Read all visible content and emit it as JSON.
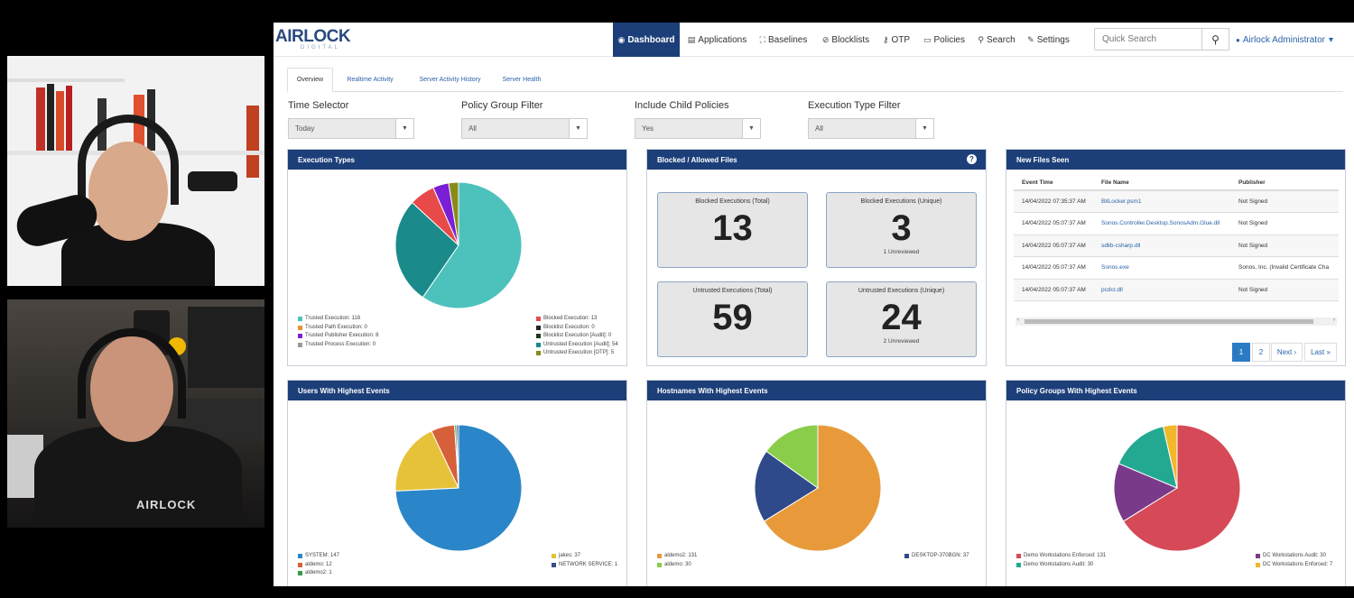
{
  "brand": {
    "name": "AIRLOCK",
    "sub": "DIGITAL"
  },
  "nav": [
    {
      "label": "Dashboard",
      "icon": "dashboard-icon",
      "glyph": "◉",
      "active": true
    },
    {
      "label": "Applications",
      "icon": "document-icon",
      "glyph": "▤",
      "active": false
    },
    {
      "label": "Baselines",
      "icon": "baseline-icon",
      "glyph": "⛶",
      "active": false
    },
    {
      "label": "Blocklists",
      "icon": "ban-icon",
      "glyph": "⊘",
      "active": false
    },
    {
      "label": "OTP",
      "icon": "key-icon",
      "glyph": "⚷",
      "active": false
    },
    {
      "label": "Policies",
      "icon": "monitor-icon",
      "glyph": "▭",
      "active": false
    },
    {
      "label": "Search",
      "icon": "search-icon",
      "glyph": "⚲",
      "active": false
    },
    {
      "label": "Settings",
      "icon": "wrench-icon",
      "glyph": "✎",
      "active": false
    }
  ],
  "quick_search": {
    "placeholder": "Quick Search",
    "glyph": "⚲"
  },
  "user": {
    "label": "Airlock Administrator",
    "glyph": "●",
    "caret": "▾"
  },
  "tabs": [
    {
      "label": "Overview",
      "active": true
    },
    {
      "label": "Realtime Activity",
      "active": false
    },
    {
      "label": "Server Activity History",
      "active": false
    },
    {
      "label": "Server Health",
      "active": false
    }
  ],
  "filters": [
    {
      "label": "Time Selector",
      "value": "Today"
    },
    {
      "label": "Policy Group Filter",
      "value": "All"
    },
    {
      "label": "Include Child Policies",
      "value": "Yes"
    },
    {
      "label": "Execution Type Filter",
      "value": "All"
    }
  ],
  "panels": {
    "execution_types": "Execution Types",
    "blocked_allowed": "Blocked / Allowed Files",
    "new_files": "New Files Seen",
    "users": "Users With Highest Events",
    "hostnames": "Hostnames With Highest Events",
    "policy_groups": "Policy Groups With Highest Events"
  },
  "stats": [
    {
      "title": "Blocked Executions (Total)",
      "value": "13",
      "sub": ""
    },
    {
      "title": "Blocked Executions (Unique)",
      "value": "3",
      "sub": "1 Unreviewed"
    },
    {
      "title": "Untrusted Executions (Total)",
      "value": "59",
      "sub": ""
    },
    {
      "title": "Untrusted Executions (Unique)",
      "value": "24",
      "sub": "2 Unreviewed"
    }
  ],
  "new_files": {
    "columns": [
      "Event Time",
      "File Name",
      "Publisher"
    ],
    "rows": [
      {
        "time": "14/04/2022 07:35:37 AM",
        "file": "BitLocker.psm1",
        "publisher": "Not Signed"
      },
      {
        "time": "14/04/2022 05:07:37 AM",
        "file": "Sonos.Controller.Desktop.SonosAdm.Glue.dll",
        "publisher": "Not Signed"
      },
      {
        "time": "14/04/2022 05:07:37 AM",
        "file": "sdlib-csharp.dll",
        "publisher": "Not Signed"
      },
      {
        "time": "14/04/2022 05:07:37 AM",
        "file": "Sonos.exe",
        "publisher": "Sonos, Inc. (Invalid Certificate Cha"
      },
      {
        "time": "14/04/2022 05:07:37 AM",
        "file": "pcdcr.dll",
        "publisher": "Not Signed"
      }
    ],
    "pager": [
      "1",
      "2",
      "Next ›",
      "Last »"
    ],
    "scroll_left": "‹",
    "scroll_right": "›"
  },
  "chart_data": [
    {
      "type": "pie",
      "series": [
        {
          "name": "Trusted Execution",
          "value": 118,
          "color": "#4dc2bd"
        },
        {
          "name": "Trusted Path Execution",
          "value": 0,
          "color": "#e8903a"
        },
        {
          "name": "Trusted Publisher Execution",
          "value": 8,
          "color": "#7a1fd6"
        },
        {
          "name": "Trusted Process Execution",
          "value": 0,
          "color": "#999999"
        },
        {
          "name": "Blocked Execution",
          "value": 13,
          "color": "#e84a4a"
        },
        {
          "name": "Blocklist Execution",
          "value": 0,
          "color": "#222222"
        },
        {
          "name": "Blocklist Execution [Audit]",
          "value": 0,
          "color": "#1a3a1a"
        },
        {
          "name": "Untrusted Execution [Audit]",
          "value": 54,
          "color": "#1a8a8a"
        },
        {
          "name": "Untrusted Execution [OTP]",
          "value": 5,
          "color": "#8a8a1a"
        }
      ],
      "order": [
        0,
        7,
        4,
        2,
        8
      ]
    },
    {
      "type": "pie",
      "series": [
        {
          "name": "SYSTEM",
          "value": 147,
          "color": "#2a86c8"
        },
        {
          "name": "aldemo",
          "value": 12,
          "color": "#d6603a"
        },
        {
          "name": "aldemo2",
          "value": 1,
          "color": "#3a9a4a"
        },
        {
          "name": "jakes",
          "value": 37,
          "color": "#e6c23a"
        },
        {
          "name": "NETWORK SERVICE",
          "value": 1,
          "color": "#3a4a8a"
        }
      ],
      "order": [
        0,
        3,
        1,
        2,
        4
      ]
    },
    {
      "type": "pie",
      "series": [
        {
          "name": "aldemo2",
          "value": 131,
          "color": "#e89a3a"
        },
        {
          "name": "aldemo",
          "value": 30,
          "color": "#8acd4a"
        },
        {
          "name": "DESKTOP-370BGN",
          "value": 37,
          "color": "#2e4a8a"
        }
      ],
      "order": [
        0,
        2,
        1
      ]
    },
    {
      "type": "pie",
      "series": [
        {
          "name": "Demo Workstations Enforced",
          "value": 131,
          "color": "#d64a58"
        },
        {
          "name": "Demo Workstations Audit",
          "value": 30,
          "color": "#23a892"
        },
        {
          "name": "DC Workstations Audit",
          "value": 30,
          "color": "#7a3a8a"
        },
        {
          "name": "DC Workstations Enforced",
          "value": 7,
          "color": "#f0b82a"
        }
      ],
      "order": [
        0,
        2,
        1,
        3
      ]
    }
  ],
  "legends": {
    "exec_left": [
      "Trusted Execution: 118",
      "Trusted Path Execution: 0",
      "Trusted Publisher Execution: 8",
      "Trusted Process Execution: 0"
    ],
    "exec_right": [
      "Blocked Execution: 13",
      "Blocklist Execution: 0",
      "Blocklist Execution [Audit]: 0",
      "Untrusted Execution [Audit]: 54",
      "Untrusted Execution [OTP]: 5"
    ],
    "users_left": [
      "SYSTEM: 147",
      "aldemo: 12",
      "aldemo2: 1"
    ],
    "users_right": [
      "jakes: 37",
      "NETWORK SERVICE: 1"
    ],
    "hosts_left": [
      "aldemo2: 131",
      "aldemo: 30"
    ],
    "hosts_right": [
      "DESKTOP-370BGN: 37"
    ],
    "pg_left": [
      "Demo Workstations Enforced: 131",
      "Demo Workstations Audit: 30"
    ],
    "pg_right": [
      "DC Workstations Audit: 30",
      "DC Workstations Enforced: 7"
    ]
  },
  "colors": {
    "accent": "#1d3f79",
    "link": "#2a62a8"
  },
  "camera": {
    "shirt_logo": "AIRLOCK"
  }
}
